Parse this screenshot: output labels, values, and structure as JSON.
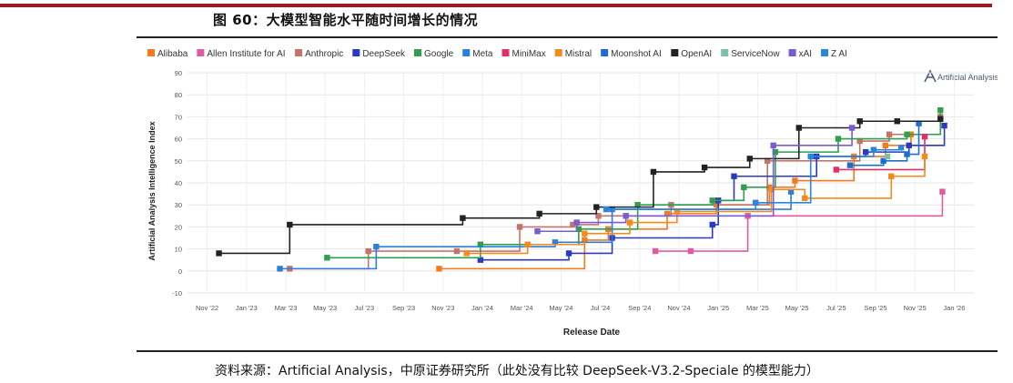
{
  "figure": {
    "title": "图 60：大模型智能水平随时间增长的情况",
    "source": "资料来源：Artificial Analysis，中原证券研究所（此处没有比较 DeepSeek-V3.2-Speciale 的模型能力）",
    "watermark": "Artificial Analysis"
  },
  "chart_data": {
    "type": "line",
    "step": "after",
    "title": "",
    "xlabel": "Release Date",
    "ylabel": "Artificial Analysis Intelligence Index",
    "ylim": [
      -10,
      90
    ],
    "yticks": [
      -10,
      0,
      10,
      20,
      30,
      40,
      50,
      60,
      70,
      80,
      90
    ],
    "grid": true,
    "legend_position": "top",
    "xticks": [
      {
        "label": "Nov '22",
        "t": 0
      },
      {
        "label": "Jan '23",
        "t": 2
      },
      {
        "label": "Mar '23",
        "t": 4
      },
      {
        "label": "May '23",
        "t": 6
      },
      {
        "label": "Jul '23",
        "t": 8
      },
      {
        "label": "Sep '23",
        "t": 10
      },
      {
        "label": "Nov '23",
        "t": 12
      },
      {
        "label": "Jan '24",
        "t": 14
      },
      {
        "label": "Mar '24",
        "t": 16
      },
      {
        "label": "May '24",
        "t": 18
      },
      {
        "label": "Jul '24",
        "t": 20
      },
      {
        "label": "Sep '24",
        "t": 22
      },
      {
        "label": "Nov '24",
        "t": 24
      },
      {
        "label": "Jan '25",
        "t": 26
      },
      {
        "label": "Mar '25",
        "t": 28
      },
      {
        "label": "May '25",
        "t": 30
      },
      {
        "label": "Jul '25",
        "t": 32
      },
      {
        "label": "Sep '25",
        "t": 34
      },
      {
        "label": "Nov '25",
        "t": 36
      },
      {
        "label": "Jan '26",
        "t": 38
      }
    ],
    "series": [
      {
        "name": "Alibaba",
        "color": "#f47a1f",
        "points": [
          [
            11.8,
            1
          ],
          [
            19.2,
            14
          ],
          [
            20.4,
            19
          ],
          [
            23.4,
            26
          ],
          [
            25.9,
            30
          ],
          [
            28.6,
            38
          ],
          [
            29.9,
            41
          ],
          [
            32.9,
            52
          ],
          [
            34.5,
            57
          ],
          [
            35.8,
            62
          ]
        ]
      },
      {
        "name": "Allen Institute for AI",
        "color": "#e05ba0",
        "points": [
          [
            22.8,
            9
          ],
          [
            24.6,
            9
          ],
          [
            27.5,
            25
          ],
          [
            37.4,
            36
          ]
        ]
      },
      {
        "name": "Anthropic",
        "color": "#c0776a",
        "points": [
          [
            4.2,
            1
          ],
          [
            8.2,
            9
          ],
          [
            12.7,
            9
          ],
          [
            15.9,
            20
          ],
          [
            18.6,
            21
          ],
          [
            19.9,
            25
          ],
          [
            23.6,
            30
          ],
          [
            28.5,
            50
          ],
          [
            33.2,
            59
          ],
          [
            34.7,
            62
          ],
          [
            37.3,
            70
          ]
        ]
      },
      {
        "name": "DeepSeek",
        "color": "#2b3bbd",
        "points": [
          [
            13.9,
            5
          ],
          [
            18.4,
            8
          ],
          [
            20.6,
            15
          ],
          [
            25.7,
            21
          ],
          [
            26.0,
            32
          ],
          [
            26.8,
            43
          ],
          [
            31.0,
            52
          ],
          [
            33.5,
            54
          ],
          [
            35.7,
            57
          ],
          [
            37.5,
            66
          ]
        ]
      },
      {
        "name": "Google",
        "color": "#2f9e4f",
        "points": [
          [
            6.1,
            6
          ],
          [
            13.9,
            12
          ],
          [
            18.9,
            19
          ],
          [
            21.9,
            30
          ],
          [
            25.7,
            32
          ],
          [
            27.3,
            38
          ],
          [
            28.9,
            54
          ],
          [
            32.1,
            60
          ],
          [
            35.6,
            62
          ],
          [
            37.3,
            73
          ]
        ]
      },
      {
        "name": "Meta",
        "color": "#2b7fd6",
        "points": [
          [
            3.7,
            1
          ],
          [
            8.6,
            11
          ],
          [
            17.7,
            13
          ],
          [
            20.6,
            28
          ],
          [
            29.7,
            36
          ]
        ]
      },
      {
        "name": "MiniMax",
        "color": "#e0306a",
        "points": [
          [
            32.0,
            46
          ],
          [
            36.5,
            61
          ]
        ]
      },
      {
        "name": "Mistral",
        "color": "#f28a1c",
        "points": [
          [
            13.2,
            8
          ],
          [
            16.3,
            12
          ],
          [
            19.2,
            17
          ],
          [
            21.5,
            22
          ],
          [
            23.9,
            27
          ],
          [
            28.7,
            37
          ],
          [
            30.4,
            33
          ],
          [
            34.8,
            43
          ],
          [
            36.5,
            52
          ]
        ]
      },
      {
        "name": "Moonshot AI",
        "color": "#1e6fc9",
        "points": [
          [
            32.7,
            48
          ],
          [
            34.4,
            50
          ],
          [
            35.6,
            53
          ],
          [
            36.2,
            67
          ]
        ]
      },
      {
        "name": "OpenAI",
        "color": "#222222",
        "points": [
          [
            0.6,
            8
          ],
          [
            4.2,
            21
          ],
          [
            13.0,
            24
          ],
          [
            16.9,
            26
          ],
          [
            19.8,
            29
          ],
          [
            22.7,
            45
          ],
          [
            25.3,
            47
          ],
          [
            27.6,
            51
          ],
          [
            30.1,
            65
          ],
          [
            33.2,
            68
          ],
          [
            35.1,
            68
          ],
          [
            37.3,
            69
          ]
        ]
      },
      {
        "name": "ServiceNow",
        "color": "#7fbfa9",
        "points": [
          [
            34.6,
            52
          ]
        ]
      },
      {
        "name": "xAI",
        "color": "#7b5bd1",
        "points": [
          [
            16.8,
            18
          ],
          [
            18.8,
            22
          ],
          [
            21.3,
            25
          ],
          [
            28.8,
            57
          ],
          [
            32.8,
            65
          ]
        ]
      },
      {
        "name": "Z AI",
        "color": "#2a86d9",
        "points": [
          [
            20.3,
            28
          ],
          [
            27.9,
            31
          ],
          [
            30.7,
            52
          ],
          [
            33.9,
            55
          ],
          [
            35.3,
            56
          ]
        ]
      }
    ]
  }
}
